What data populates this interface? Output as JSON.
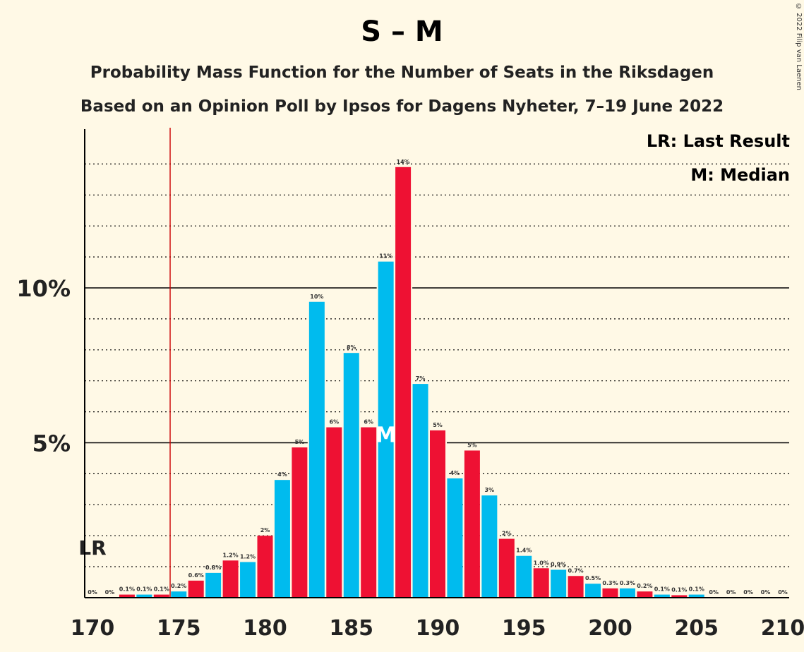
{
  "chart_data": {
    "type": "bar",
    "title": "S – M",
    "subtitle": "Probability Mass Function for the Number of Seats in the Riksdagen",
    "subtitle2": "Based on an Opinion Poll by Ipsos for Dagens Nyheter, 7–19 June 2022",
    "copyright": "© 2022 Filip van Laenen",
    "legend": {
      "placement": "top-right",
      "items": [
        "LR: Last Result",
        "M: Median"
      ]
    },
    "x_ticks": [
      "170",
      "175",
      "180",
      "185",
      "190",
      "195",
      "200",
      "205",
      "210"
    ],
    "y_ticks": [
      "5%",
      "10%"
    ],
    "xlim": [
      170,
      210
    ],
    "ylim": [
      0,
      15
    ],
    "last_result": {
      "seat": 174.5,
      "label": "LR"
    },
    "median": {
      "seat": 187,
      "label": "M"
    },
    "colors": {
      "odd": "#00BBEE",
      "even": "#EE1133",
      "last_result_line": "#CC0000"
    },
    "seats": [
      170,
      171,
      172,
      173,
      174,
      175,
      176,
      177,
      178,
      179,
      180,
      181,
      182,
      183,
      184,
      185,
      186,
      187,
      188,
      189,
      190,
      191,
      192,
      193,
      194,
      195,
      196,
      197,
      198,
      199,
      200,
      201,
      202,
      203,
      204,
      205,
      206,
      207,
      208,
      209,
      210
    ],
    "values": [
      0,
      0,
      0.1,
      0.1,
      0.1,
      0.2,
      0.55,
      0.8,
      1.2,
      1.15,
      2,
      3.8,
      4.85,
      9.55,
      5.5,
      7.9,
      5.5,
      10.85,
      13.9,
      6.9,
      5.4,
      3.85,
      4.75,
      3.3,
      1.9,
      1.35,
      0.95,
      0.9,
      0.7,
      0.45,
      0.3,
      0.3,
      0.2,
      0.1,
      0.08,
      0.1,
      0,
      0,
      0,
      0,
      0
    ],
    "labels": [
      "0%",
      "0%",
      "0.1%",
      "0.1%",
      "0.1%",
      "0.2%",
      "0.6%",
      "0.8%",
      "1.2%",
      "1.2%",
      "2%",
      "4%",
      "5%",
      "10%",
      "6%",
      "8%",
      "6%",
      "11%",
      "14%",
      "7%",
      "5%",
      "4%",
      "5%",
      "3%",
      "2%",
      "1.4%",
      "1.0%",
      "0.9%",
      "0.7%",
      "0.5%",
      "0.3%",
      "0.3%",
      "0.2%",
      "0.1%",
      "0.1%",
      "0.1%",
      "0%",
      "0%",
      "0%",
      "0%",
      "0%"
    ]
  }
}
